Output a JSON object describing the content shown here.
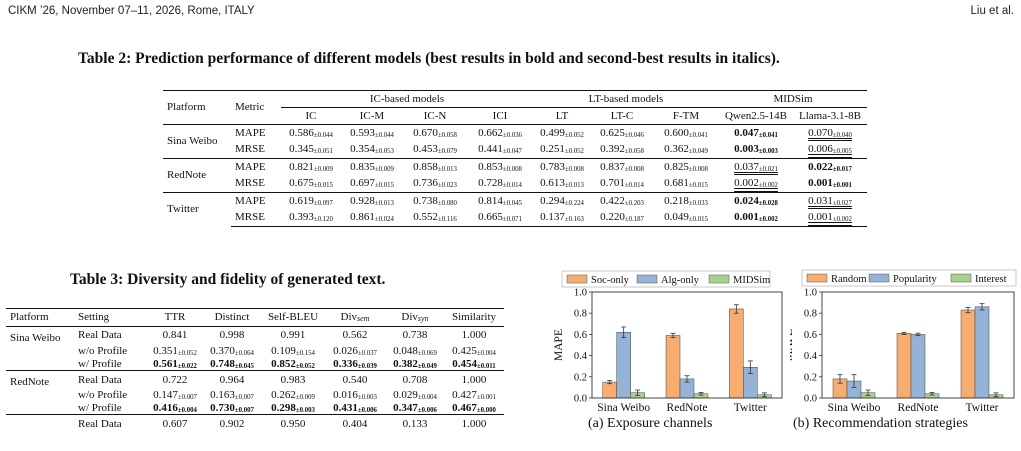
{
  "header": {
    "left": "CIKM ’26, November 07–11, 2026, Rome, ITALY",
    "right": "Liu et al."
  },
  "table2": {
    "caption": "Table 2: Prediction performance of different models (best results in bold and second-best results in italics).",
    "col_platform": "Platform",
    "col_metric": "Metric",
    "groups": [
      "IC-based models",
      "LT-based models",
      "MIDSim"
    ],
    "models": [
      "IC",
      "IC-M",
      "IC-N",
      "ICI",
      "LT",
      "LT-C",
      "F-TM",
      "Qwen2.5-14B",
      "Llama-3.1-8B"
    ],
    "rows": [
      {
        "platform": "Sina Weibo",
        "metric": "MAPE",
        "cells": [
          [
            "0.586",
            "0.044"
          ],
          [
            "0.593",
            "0.044"
          ],
          [
            "0.670",
            "0.058"
          ],
          [
            "0.662",
            "0.036"
          ],
          [
            "0.499",
            "0.052"
          ],
          [
            "0.625",
            "0.046"
          ],
          [
            "0.600",
            "0.041"
          ],
          [
            "0.047",
            "0.041"
          ],
          [
            "0.070",
            "0.040"
          ]
        ]
      },
      {
        "platform": "",
        "metric": "MRSE",
        "cells": [
          [
            "0.345",
            "0.051"
          ],
          [
            "0.354",
            "0.053"
          ],
          [
            "0.453",
            "0.079"
          ],
          [
            "0.441",
            "0.047"
          ],
          [
            "0.251",
            "0.052"
          ],
          [
            "0.392",
            "0.058"
          ],
          [
            "0.362",
            "0.049"
          ],
          [
            "0.003",
            "0.003"
          ],
          [
            "0.006",
            "0.005"
          ]
        ]
      },
      {
        "platform": "RedNote",
        "metric": "MAPE",
        "cells": [
          [
            "0.821",
            "0.009"
          ],
          [
            "0.835",
            "0.009"
          ],
          [
            "0.858",
            "0.013"
          ],
          [
            "0.853",
            "0.008"
          ],
          [
            "0.783",
            "0.008"
          ],
          [
            "0.837",
            "0.008"
          ],
          [
            "0.825",
            "0.008"
          ],
          [
            "0.037",
            "0.021"
          ],
          [
            "0.022",
            "0.017"
          ]
        ]
      },
      {
        "platform": "",
        "metric": "MRSE",
        "cells": [
          [
            "0.675",
            "0.015"
          ],
          [
            "0.697",
            "0.015"
          ],
          [
            "0.736",
            "0.023"
          ],
          [
            "0.728",
            "0.014"
          ],
          [
            "0.613",
            "0.013"
          ],
          [
            "0.701",
            "0.014"
          ],
          [
            "0.681",
            "0.015"
          ],
          [
            "0.002",
            "0.002"
          ],
          [
            "0.001",
            "0.001"
          ]
        ]
      },
      {
        "platform": "Twitter",
        "metric": "MAPE",
        "cells": [
          [
            "0.619",
            "0.097"
          ],
          [
            "0.928",
            "0.013"
          ],
          [
            "0.738",
            "0.080"
          ],
          [
            "0.814",
            "0.045"
          ],
          [
            "0.294",
            "0.224"
          ],
          [
            "0.422",
            "0.203"
          ],
          [
            "0.218",
            "0.033"
          ],
          [
            "0.024",
            "0.028"
          ],
          [
            "0.031",
            "0.027"
          ]
        ]
      },
      {
        "platform": "",
        "metric": "MRSE",
        "cells": [
          [
            "0.393",
            "0.120"
          ],
          [
            "0.861",
            "0.024"
          ],
          [
            "0.552",
            "0.116"
          ],
          [
            "0.665",
            "0.071"
          ],
          [
            "0.137",
            "0.163"
          ],
          [
            "0.220",
            "0.187"
          ],
          [
            "0.049",
            "0.015"
          ],
          [
            "0.001",
            "0.002"
          ],
          [
            "0.001",
            "0.002"
          ]
        ]
      }
    ]
  },
  "table3": {
    "caption": "Table 3: Diversity and fidelity of generated text.",
    "headers": [
      "Platform",
      "Setting",
      "TTR",
      "Distinct",
      "Self-BLEU",
      "Div",
      "Div",
      "Similarity"
    ],
    "header_subs": [
      "sem",
      "syn"
    ],
    "rows": [
      {
        "platform": "Sina Weibo",
        "setting": "Real Data",
        "cells": [
          [
            "0.841",
            ""
          ],
          [
            "0.998",
            ""
          ],
          [
            "0.991",
            ""
          ],
          [
            "0.562",
            ""
          ],
          [
            "0.738",
            ""
          ],
          [
            "1.000",
            ""
          ]
        ]
      },
      {
        "platform": "",
        "setting": "w/o Profile",
        "cells": [
          [
            "0.351",
            "0.052"
          ],
          [
            "0.370",
            "0.064"
          ],
          [
            "0.109",
            "0.154"
          ],
          [
            "0.026",
            "0.037"
          ],
          [
            "0.048",
            "0.069"
          ],
          [
            "0.425",
            "0.004"
          ]
        ]
      },
      {
        "platform": "",
        "setting": "w/ Profile",
        "cells": [
          [
            "0.561",
            "0.022"
          ],
          [
            "0.748",
            "0.045"
          ],
          [
            "0.852",
            "0.052"
          ],
          [
            "0.336",
            "0.039"
          ],
          [
            "0.382",
            "0.049"
          ],
          [
            "0.454",
            "0.011"
          ]
        ]
      },
      {
        "platform": "RedNote",
        "setting": "Real Data",
        "cells": [
          [
            "0.722",
            ""
          ],
          [
            "0.964",
            ""
          ],
          [
            "0.983",
            ""
          ],
          [
            "0.540",
            ""
          ],
          [
            "0.708",
            ""
          ],
          [
            "1.000",
            ""
          ]
        ]
      },
      {
        "platform": "",
        "setting": "w/o Profile",
        "cells": [
          [
            "0.147",
            "0.007"
          ],
          [
            "0.163",
            "0.007"
          ],
          [
            "0.262",
            "0.009"
          ],
          [
            "0.016",
            "0.003"
          ],
          [
            "0.029",
            "0.004"
          ],
          [
            "0.427",
            "0.001"
          ]
        ]
      },
      {
        "platform": "",
        "setting": "w/ Profile",
        "cells": [
          [
            "0.416",
            "0.004"
          ],
          [
            "0.730",
            "0.007"
          ],
          [
            "0.298",
            "0.003"
          ],
          [
            "0.431",
            "0.006"
          ],
          [
            "0.347",
            "0.006"
          ],
          [
            "0.467",
            "0.000"
          ]
        ]
      },
      {
        "platform": "",
        "setting": "Real Data",
        "cells": [
          [
            "0.607",
            ""
          ],
          [
            "0.902",
            ""
          ],
          [
            "0.950",
            ""
          ],
          [
            "0.404",
            ""
          ],
          [
            "0.133",
            ""
          ],
          [
            "1.000",
            ""
          ]
        ]
      }
    ]
  },
  "chart_data": [
    {
      "type": "bar",
      "ylabel": "MAPE",
      "ylim": [
        0,
        1.0
      ],
      "yticks": [
        "0.0",
        "0.2",
        "0.4",
        "0.6",
        "0.8",
        "1.0"
      ],
      "categories": [
        "Sina Weibo",
        "RedNote",
        "Twitter"
      ],
      "caption": "(a) Exposure channels",
      "legend": "top",
      "grid": false,
      "series": [
        {
          "name": "Soc-only",
          "color": "#f7ad6f",
          "values": [
            0.15,
            0.59,
            0.84
          ],
          "err": [
            0.015,
            0.02,
            0.04
          ]
        },
        {
          "name": "Alg-only",
          "color": "#95b3d7",
          "values": [
            0.62,
            0.18,
            0.29
          ],
          "err": [
            0.05,
            0.03,
            0.06
          ]
        },
        {
          "name": "MIDSim",
          "color": "#a9d18e",
          "values": [
            0.05,
            0.04,
            0.03
          ],
          "err": [
            0.025,
            0.012,
            0.018
          ]
        }
      ]
    },
    {
      "type": "bar",
      "ylabel": "MAPE",
      "ylim": [
        0,
        1.0
      ],
      "yticks": [
        "0.0",
        "0.2",
        "0.4",
        "0.6",
        "0.8",
        "1.0"
      ],
      "categories": [
        "Sina Weibo",
        "RedNote",
        "Twitter"
      ],
      "caption": "(b) Recommendation strategies",
      "legend": "top",
      "grid": false,
      "series": [
        {
          "name": "Random",
          "color": "#f7ad6f",
          "values": [
            0.18,
            0.61,
            0.83
          ],
          "err": [
            0.04,
            0.01,
            0.025
          ]
        },
        {
          "name": "Popularity",
          "color": "#95b3d7",
          "values": [
            0.16,
            0.6,
            0.86
          ],
          "err": [
            0.06,
            0.012,
            0.03
          ]
        },
        {
          "name": "Interest",
          "color": "#a9d18e",
          "values": [
            0.05,
            0.04,
            0.03
          ],
          "err": [
            0.025,
            0.012,
            0.018
          ]
        }
      ]
    }
  ]
}
